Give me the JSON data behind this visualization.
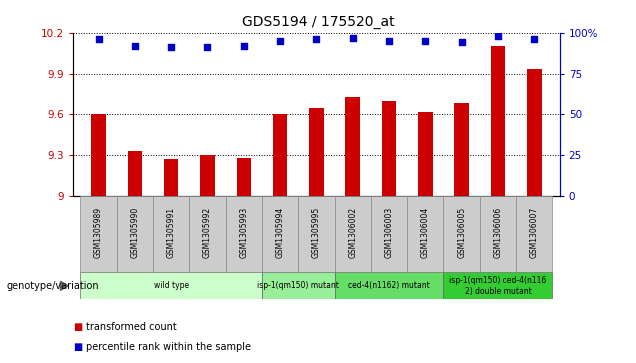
{
  "title": "GDS5194 / 175520_at",
  "samples": [
    "GSM1305989",
    "GSM1305990",
    "GSM1305991",
    "GSM1305992",
    "GSM1305993",
    "GSM1305994",
    "GSM1305995",
    "GSM1306002",
    "GSM1306003",
    "GSM1306004",
    "GSM1306005",
    "GSM1306006",
    "GSM1306007"
  ],
  "bar_values": [
    9.6,
    9.33,
    9.27,
    9.3,
    9.28,
    9.6,
    9.65,
    9.73,
    9.7,
    9.62,
    9.68,
    10.1,
    9.93
  ],
  "dot_values": [
    96,
    92,
    91,
    91,
    92,
    95,
    96,
    97,
    95,
    95,
    94,
    98,
    96
  ],
  "ylim_left": [
    9.0,
    10.2
  ],
  "ylim_right": [
    0,
    100
  ],
  "yticks_left": [
    9.0,
    9.3,
    9.6,
    9.9,
    10.2
  ],
  "yticks_right": [
    0,
    25,
    50,
    75,
    100
  ],
  "ytick_labels_left": [
    "9",
    "9.3",
    "9.6",
    "9.9",
    "10.2"
  ],
  "ytick_labels_right": [
    "0",
    "25",
    "50",
    "75",
    "100%"
  ],
  "bar_color": "#cc0000",
  "dot_color": "#0000cc",
  "grid_color": "#000000",
  "sample_box_color": "#cccccc",
  "groups": [
    {
      "label": "wild type",
      "start": 0,
      "end": 5,
      "color": "#ccffcc"
    },
    {
      "label": "isp-1(qm150) mutant",
      "start": 5,
      "end": 7,
      "color": "#99ee99"
    },
    {
      "label": "ced-4(n1162) mutant",
      "start": 7,
      "end": 10,
      "color": "#66dd66"
    },
    {
      "label": "isp-1(qm150) ced-4(n116\n2) double mutant",
      "start": 10,
      "end": 13,
      "color": "#33cc33"
    }
  ],
  "group_label_prefix": "genotype/variation",
  "legend_items": [
    {
      "label": "transformed count",
      "color": "#cc0000"
    },
    {
      "label": "percentile rank within the sample",
      "color": "#0000cc"
    }
  ]
}
